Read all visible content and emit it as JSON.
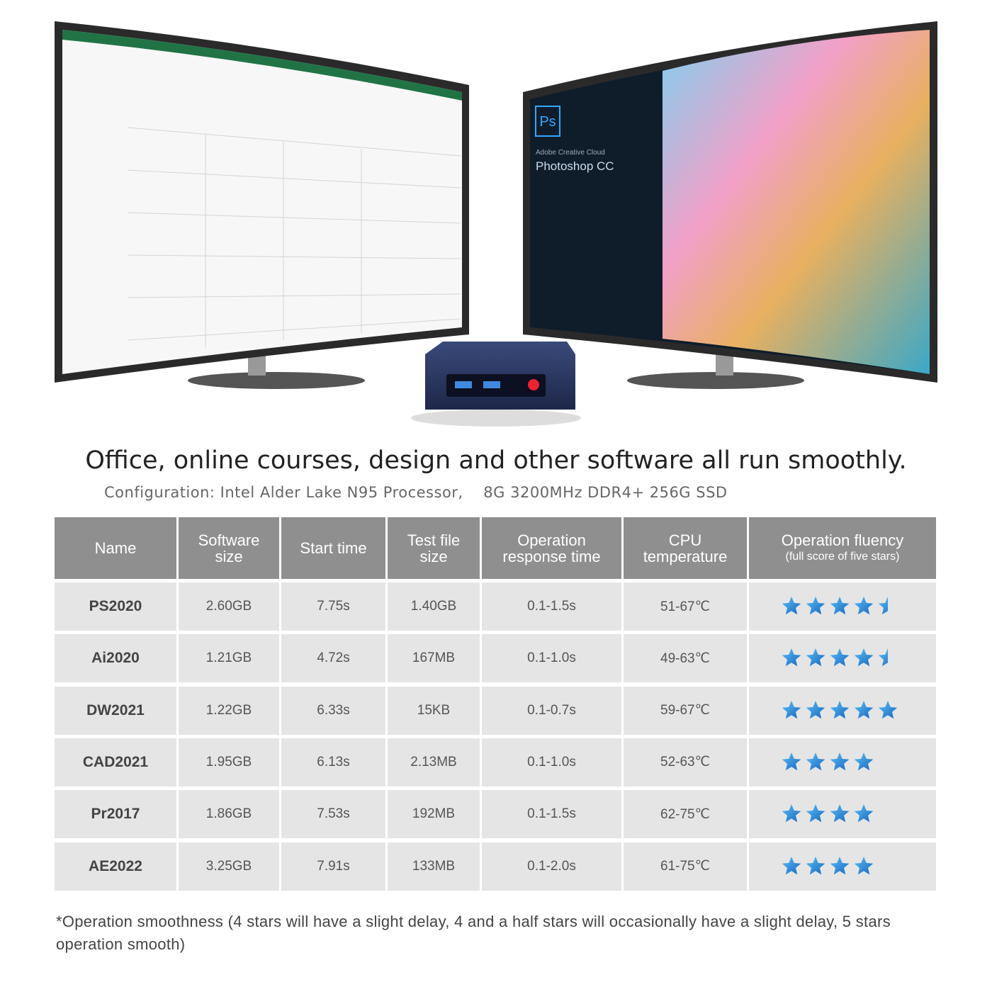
{
  "monitors": {
    "app_icon": "Ps",
    "app_brand": "Adobe Creative Cloud",
    "app_name": "Photoshop CC"
  },
  "title": "Office, online courses, design and other software all run smoothly.",
  "subtitle": "Configuration: Intel Alder Lake N95 Processor,    8G 3200MHz DDR4+ 256G SSD",
  "table": {
    "columns": [
      "Name",
      "Software size",
      "Start time",
      "Test file size",
      "Operation response time",
      "CPU temperature",
      "Operation fluency"
    ],
    "column_note": "(full score of five stars)",
    "rows": [
      {
        "cells": [
          "PS2020",
          "2.60GB",
          "7.75s",
          "1.40GB",
          "0.1-1.5s",
          "51-67℃"
        ],
        "rating": 4.5
      },
      {
        "cells": [
          "Ai2020",
          "1.21GB",
          "4.72s",
          "167MB",
          "0.1-1.0s",
          "49-63℃"
        ],
        "rating": 4.5
      },
      {
        "cells": [
          "DW2021",
          "1.22GB",
          "6.33s",
          "15KB",
          "0.1-0.7s",
          "59-67℃"
        ],
        "rating": 5
      },
      {
        "cells": [
          "CAD2021",
          "1.95GB",
          "6.13s",
          "2.13MB",
          "0.1-1.0s",
          "52-63℃"
        ],
        "rating": 4
      },
      {
        "cells": [
          "Pr2017",
          "1.86GB",
          "7.53s",
          "192MB",
          "0.1-1.5s",
          "62-75℃"
        ],
        "rating": 4
      },
      {
        "cells": [
          "AE2022",
          "3.25GB",
          "7.91s",
          "133MB",
          "0.1-2.0s",
          "61-75℃"
        ],
        "rating": 4
      }
    ]
  },
  "footnote": "*Operation smoothness (4 stars will have a slight delay, 4 and a half stars will occasionally have a slight delay, 5 stars operation smooth)"
}
